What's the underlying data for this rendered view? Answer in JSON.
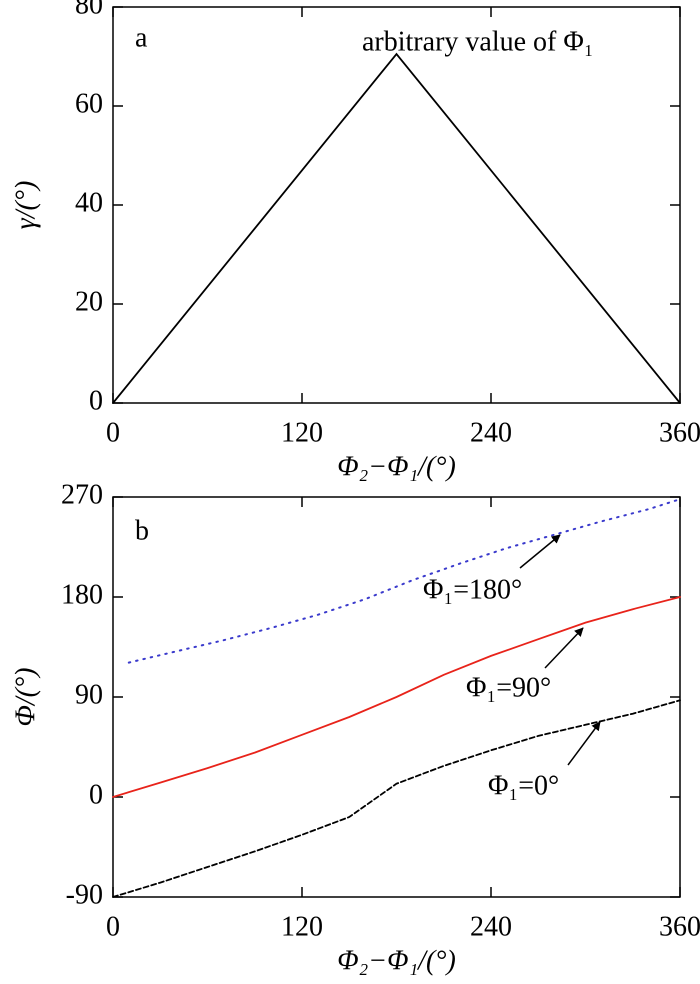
{
  "chart_data": [
    {
      "type": "line",
      "panel_label": "a",
      "xlabel": "Φ₂−Φ₁/(°)",
      "ylabel": "γ/(°)",
      "annotations": [
        "arbitrary value of Φ₁"
      ],
      "xlim": [
        0,
        360
      ],
      "xticks": [
        0,
        120,
        240,
        360
      ],
      "ylim": [
        0,
        80
      ],
      "yticks": [
        0,
        20,
        40,
        60,
        80
      ],
      "series": [
        {
          "color": "#000000",
          "style": "solid",
          "x": [
            0,
            180,
            360
          ],
          "values": [
            0,
            70.5,
            0
          ]
        }
      ]
    },
    {
      "type": "line",
      "panel_label": "b",
      "xlabel": "Φ₂−Φ₁/(°)",
      "ylabel": "Φ/(°)",
      "annotations": [
        "Φ₁=180°",
        "Φ₁=90°",
        "Φ₁=0°"
      ],
      "xlim": [
        0,
        360
      ],
      "xticks": [
        0,
        120,
        240,
        360
      ],
      "ylim": [
        -90,
        270
      ],
      "yticks": [
        -90,
        0,
        90,
        180,
        270
      ],
      "series": [
        {
          "color": "#3a3acc",
          "style": "dotted",
          "x": [
            10,
            40,
            70,
            100,
            130,
            160,
            190,
            220,
            250,
            280,
            310,
            340,
            360
          ],
          "values": [
            121,
            131,
            141,
            152,
            164,
            178,
            195,
            210,
            224,
            236,
            248,
            259,
            268
          ]
        },
        {
          "color": "#e8231a",
          "style": "solid",
          "x": [
            0,
            30,
            60,
            90,
            120,
            150,
            180,
            210,
            240,
            270,
            300,
            330,
            360
          ],
          "values": [
            0,
            13,
            26,
            40,
            56,
            72,
            90,
            110,
            127,
            142,
            157,
            169,
            180
          ]
        },
        {
          "color": "#000000",
          "style": "dashed",
          "x": [
            0,
            30,
            60,
            90,
            120,
            150,
            180,
            210,
            240,
            270,
            300,
            330,
            360
          ],
          "values": [
            -90,
            -77,
            -63,
            -49,
            -34,
            -18,
            12,
            28,
            42,
            55,
            65,
            75,
            87
          ]
        }
      ]
    }
  ]
}
